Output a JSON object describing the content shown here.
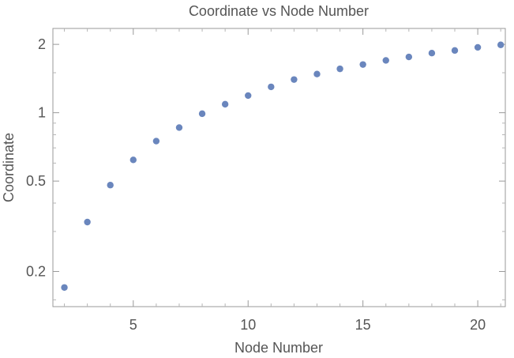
{
  "chart_data": {
    "type": "scatter",
    "title": "Coordinate vs Node Number",
    "xlabel": "Node Number",
    "ylabel": "Coordinate",
    "xlim": [
      1.5,
      21.2
    ],
    "ylim": [
      0.14,
      2.35
    ],
    "x_scale": "linear",
    "y_scale": "log",
    "x_ticks": [
      5,
      10,
      15,
      20
    ],
    "x_tick_labels": [
      "5",
      "10",
      "15",
      "20"
    ],
    "y_ticks": [
      0.2,
      0.5,
      1,
      2
    ],
    "y_tick_labels": [
      "0.2",
      "0.5",
      "1",
      "2"
    ],
    "grid": false,
    "legend": "none",
    "marker_color": "#6a86bd",
    "series": [
      {
        "x": [
          2,
          3,
          4,
          5,
          6,
          7,
          8,
          9,
          10,
          11,
          12,
          13,
          14,
          15,
          16,
          17,
          18,
          19,
          20,
          21
        ],
        "y": [
          0.17,
          0.33,
          0.48,
          0.62,
          0.75,
          0.86,
          0.99,
          1.09,
          1.19,
          1.3,
          1.4,
          1.48,
          1.56,
          1.63,
          1.7,
          1.76,
          1.83,
          1.88,
          1.94,
          1.99
        ]
      }
    ]
  }
}
